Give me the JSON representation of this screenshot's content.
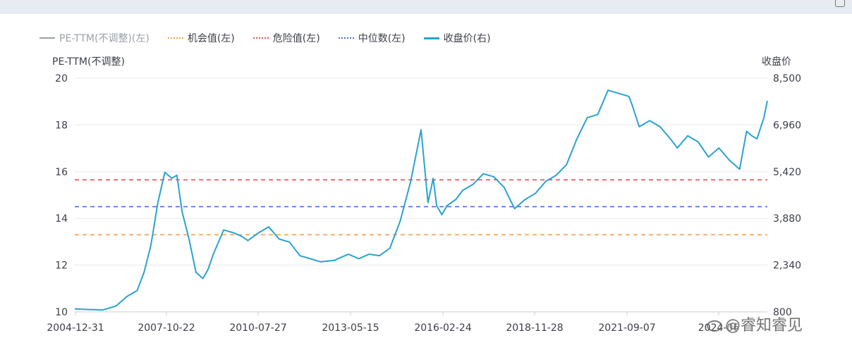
{
  "legend": [
    {
      "label": "PE-TTM(不调整)(左)",
      "style": "solid",
      "color": "#9aa0aa"
    },
    {
      "label": "机会值(左)",
      "style": "dotted",
      "color": "#f0a04a"
    },
    {
      "label": "危险值(左)",
      "style": "dotted",
      "color": "#e35050"
    },
    {
      "label": "中位数(左)",
      "style": "dotted",
      "color": "#4a6fd8"
    },
    {
      "label": "收盘价(右)",
      "style": "solid",
      "color": "#2aa3d0"
    }
  ],
  "watermark": "@睿知睿见",
  "chart_data": {
    "type": "line",
    "title": "",
    "left_axis": {
      "label": "PE-TTM(不调整)",
      "ticks": [
        "20",
        "18",
        "16",
        "14",
        "12",
        "10"
      ],
      "range": [
        10,
        20
      ]
    },
    "right_axis": {
      "label": "收盘价",
      "ticks": [
        "8,500",
        "6,960",
        "5,420",
        "3,880",
        "2,340",
        "800"
      ],
      "range": [
        800,
        8500
      ]
    },
    "x_ticks": [
      "2004-12-31",
      "2007-10-22",
      "2010-07-27",
      "2013-05-15",
      "2016-02-24",
      "2018-11-28",
      "2021-09-07",
      "2024-06"
    ],
    "x_range": [
      2005.0,
      2025.0
    ],
    "reference_lines": [
      {
        "name": "危险值(左)",
        "value": 15.65,
        "color": "#e35050"
      },
      {
        "name": "中位数(左)",
        "value": 14.5,
        "color": "#4a6fd8"
      },
      {
        "name": "机会值(左)",
        "value": 13.3,
        "color": "#f0a04a"
      }
    ],
    "grid": true,
    "series": [
      {
        "name": "收盘价(右)",
        "axis": "right",
        "color": "#2aa3d0",
        "x": [
          2005.0,
          2005.4,
          2005.8,
          2006.2,
          2006.5,
          2006.8,
          2007.0,
          2007.2,
          2007.4,
          2007.6,
          2007.8,
          2007.95,
          2008.1,
          2008.3,
          2008.5,
          2008.7,
          2008.85,
          2009.0,
          2009.3,
          2009.6,
          2009.8,
          2010.0,
          2010.3,
          2010.6,
          2010.9,
          2011.2,
          2011.5,
          2011.8,
          2012.1,
          2012.5,
          2012.9,
          2013.2,
          2013.5,
          2013.8,
          2014.1,
          2014.4,
          2014.7,
          2015.0,
          2015.2,
          2015.35,
          2015.45,
          2015.6,
          2015.75,
          2016.0,
          2016.2,
          2016.5,
          2016.8,
          2017.1,
          2017.4,
          2017.7,
          2018.0,
          2018.3,
          2018.6,
          2018.9,
          2019.2,
          2019.5,
          2019.8,
          2020.1,
          2020.4,
          2020.7,
          2021.0,
          2021.1,
          2021.3,
          2021.6,
          2021.9,
          2022.2,
          2022.4,
          2022.7,
          2023.0,
          2023.3,
          2023.6,
          2023.9,
          2024.2,
          2024.4,
          2024.55,
          2024.7,
          2024.9,
          2025.0
        ],
        "y": [
          900,
          880,
          860,
          1000,
          1300,
          1500,
          2100,
          3000,
          4400,
          5400,
          5200,
          5300,
          4100,
          3200,
          2100,
          1900,
          2200,
          2700,
          3500,
          3400,
          3300,
          3150,
          3400,
          3600,
          3200,
          3100,
          2650,
          2550,
          2450,
          2500,
          2700,
          2550,
          2700,
          2650,
          2900,
          3800,
          5100,
          6800,
          4400,
          5200,
          4300,
          4000,
          4300,
          4500,
          4800,
          5000,
          5350,
          5250,
          4900,
          4200,
          4500,
          4700,
          5100,
          5300,
          5650,
          6500,
          7200,
          7300,
          8100,
          8000,
          7900,
          7600,
          6900,
          7100,
          6900,
          6500,
          6200,
          6600,
          6400,
          5900,
          6200,
          5800,
          5500,
          6750,
          6600,
          6500,
          7200,
          7750
        ]
      }
    ]
  }
}
